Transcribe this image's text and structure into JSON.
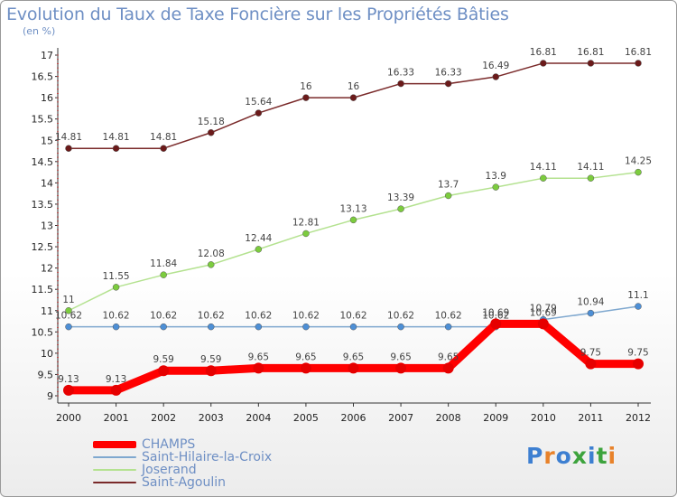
{
  "header": {
    "title": "Evolution du Taux de Taxe Foncière sur les Propriétés Bâties",
    "unit": "(en %)"
  },
  "logo": {
    "text": "Proxiti",
    "letter_colors": [
      "#3d7fd1",
      "#e8822a",
      "#3d7fd1",
      "#3da33d",
      "#3d7fd1",
      "#3da33d",
      "#e8822a"
    ]
  },
  "chart_data": {
    "type": "line",
    "title": "Evolution du Taux de Taxe Foncière sur les Propriétés Bâties",
    "ylabel": "(en %)",
    "xlabel": "",
    "x": [
      "2000",
      "2001",
      "2002",
      "2003",
      "2004",
      "2005",
      "2006",
      "2007",
      "2008",
      "2009",
      "2010",
      "2011",
      "2012"
    ],
    "ylim": [
      9,
      17
    ],
    "yticks": [
      "9",
      "9.5",
      "10",
      "10.5",
      "11",
      "11.5",
      "12",
      "12.5",
      "13",
      "13.5",
      "14",
      "14.5",
      "15",
      "15.5",
      "16",
      "16.5",
      "17"
    ],
    "grid": false,
    "legend": "bottom-left",
    "series": [
      {
        "name": "CHAMPS",
        "color": "#ff0000",
        "marker": "#e60000",
        "width": 9,
        "values": [
          9.13,
          9.13,
          9.59,
          9.59,
          9.65,
          9.65,
          9.65,
          9.65,
          9.65,
          10.69,
          10.69,
          9.75,
          9.75
        ],
        "labels": [
          "9.13",
          "9.13",
          "9.59",
          "9.59",
          "9.65",
          "9.65",
          "9.65",
          "9.65",
          "9.65",
          "10.69",
          "10.69",
          "9.75",
          "9.75"
        ]
      },
      {
        "name": "Saint-Hilaire-la-Croix",
        "color": "#7fa8cf",
        "marker": "#4d8fd6",
        "width": 1.5,
        "values": [
          10.62,
          10.62,
          10.62,
          10.62,
          10.62,
          10.62,
          10.62,
          10.62,
          10.62,
          10.62,
          10.79,
          10.94,
          11.1
        ],
        "labels": [
          "10.62",
          "10.62",
          "10.62",
          "10.62",
          "10.62",
          "10.62",
          "10.62",
          "10.62",
          "10.62",
          "10.62",
          "10.79",
          "10.94",
          "11.1"
        ]
      },
      {
        "name": "Joserand",
        "color": "#b4e290",
        "marker": "#7ccc3e",
        "width": 1.5,
        "values": [
          11,
          11.55,
          11.84,
          12.08,
          12.44,
          12.81,
          13.13,
          13.39,
          13.7,
          13.9,
          14.11,
          14.11,
          14.25
        ],
        "labels": [
          "11",
          "11.55",
          "11.84",
          "12.08",
          "12.44",
          "12.81",
          "13.13",
          "13.39",
          "13.7",
          "13.9",
          "14.11",
          "14.11",
          "14.25"
        ]
      },
      {
        "name": "Saint-Agoulin",
        "color": "#7a2a2a",
        "marker": "#6b1a1a",
        "width": 1.5,
        "values": [
          14.81,
          14.81,
          14.81,
          15.18,
          15.64,
          16,
          16,
          16.33,
          16.33,
          16.49,
          16.81,
          16.81,
          16.81
        ],
        "labels": [
          "14.81",
          "14.81",
          "14.81",
          "15.18",
          "15.64",
          "16",
          "16",
          "16.33",
          "16.33",
          "16.49",
          "16.81",
          "16.81",
          "16.81"
        ]
      }
    ]
  }
}
